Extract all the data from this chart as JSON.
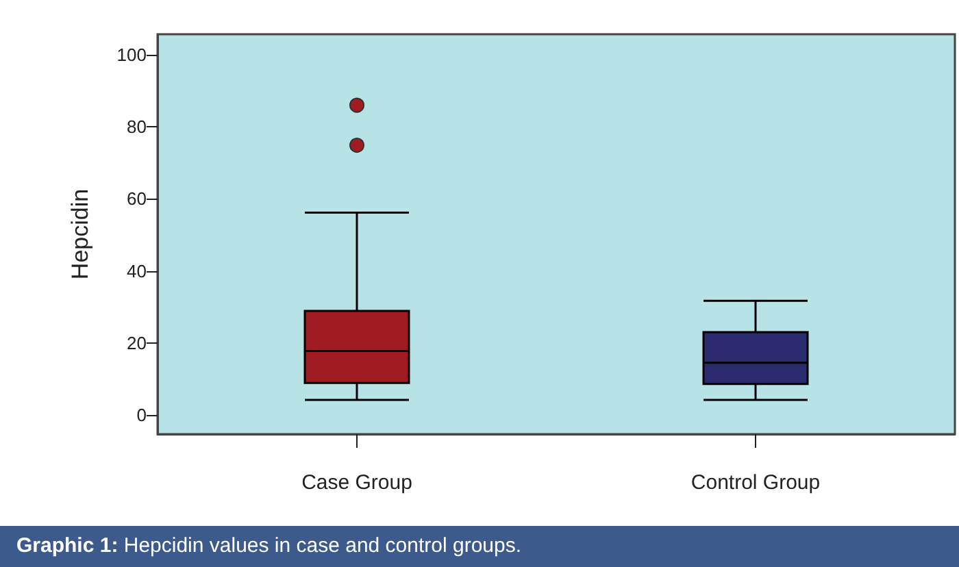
{
  "chart_data": {
    "type": "box",
    "title": "Graphic 1: Hepcidin values in case and control groups.",
    "ylabel": "Hepcidin",
    "categories": [
      "Case Group",
      "Control Group"
    ],
    "boxes": [
      {
        "low": 4.2,
        "q1": 8.9,
        "median": 17.8,
        "q3": 28.9,
        "high": 56.2,
        "outliers": [
          86,
          74.9
        ]
      },
      {
        "low": 4.2,
        "q1": 8.6,
        "median": 14.5,
        "q3": 23,
        "high": 31.7
      }
    ],
    "colors": [
      "#a01c22",
      "#2a2a6e"
    ],
    "ylim": [
      -5.3,
      105.7
    ],
    "yticks": [
      0,
      20,
      40,
      60,
      80,
      100
    ],
    "grid": false
  }
}
